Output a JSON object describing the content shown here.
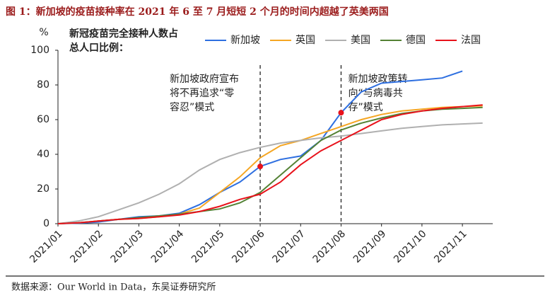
{
  "chart_data": {
    "type": "line",
    "title": "图 1：新加坡的疫苗接种率在 2021 年 6 至 7 月短短 2 个月的时间内超越了英美两国",
    "subtitle": [
      "新冠疫苗完全接种人数占",
      "总人口比例："
    ],
    "y_label": "%",
    "source": "数据来源：Our World in Data，东吴证券研究所",
    "categories": [
      "2021/01",
      null,
      "2021/02",
      null,
      "2021/03",
      null,
      "2021/04",
      null,
      "2021/05",
      null,
      "2021/06",
      null,
      "2021/07",
      null,
      "2021/08",
      null,
      "2021/09",
      null,
      "2021/10",
      null,
      "2021/11",
      null
    ],
    "ylim": [
      0,
      100
    ],
    "yticks": [
      0,
      20,
      40,
      60,
      80,
      100
    ],
    "series": [
      {
        "name": "新加坡",
        "color": "#2e6fe0",
        "values": [
          0,
          0.3,
          1,
          2.5,
          4,
          4.5,
          6,
          11,
          18,
          24,
          33,
          37,
          39,
          48,
          64,
          76,
          81,
          82,
          83,
          84,
          88,
          null
        ]
      },
      {
        "name": "英国",
        "color": "#f5a623",
        "values": [
          0,
          0.5,
          1.5,
          2.5,
          3,
          4,
          5.5,
          9,
          18,
          27,
          38,
          45,
          48,
          52,
          56,
          60,
          63,
          65,
          66,
          67,
          67.5,
          68
        ]
      },
      {
        "name": "美国",
        "color": "#b0b0b0",
        "values": [
          0,
          1.5,
          4,
          8,
          12,
          17,
          23,
          31,
          37,
          41,
          44,
          46.5,
          48,
          49.5,
          50.5,
          52,
          53.5,
          55,
          56,
          57,
          57.5,
          58
        ]
      },
      {
        "name": "德国",
        "color": "#548235",
        "values": [
          0,
          0.5,
          1.5,
          2.5,
          3.5,
          4.5,
          5.5,
          7,
          8.5,
          12,
          18,
          28,
          38,
          48,
          54,
          58,
          61,
          63.5,
          65,
          66,
          66.5,
          67
        ]
      },
      {
        "name": "法国",
        "color": "#e8121b",
        "values": [
          0,
          0.5,
          1.5,
          2.5,
          3,
          4,
          5,
          7,
          10,
          14,
          17,
          24,
          34,
          42,
          48,
          54,
          60,
          63,
          65,
          66.5,
          67.5,
          68.5
        ]
      }
    ],
    "annotations": [
      {
        "category": "2021/06",
        "lines": [
          "新加坡政府宣布",
          "将不再追求“零",
          "容忍”模式"
        ]
      },
      {
        "category": "2021/08",
        "lines": [
          "新加坡政策转",
          "向“与病毒共",
          "存”模式"
        ]
      }
    ]
  }
}
